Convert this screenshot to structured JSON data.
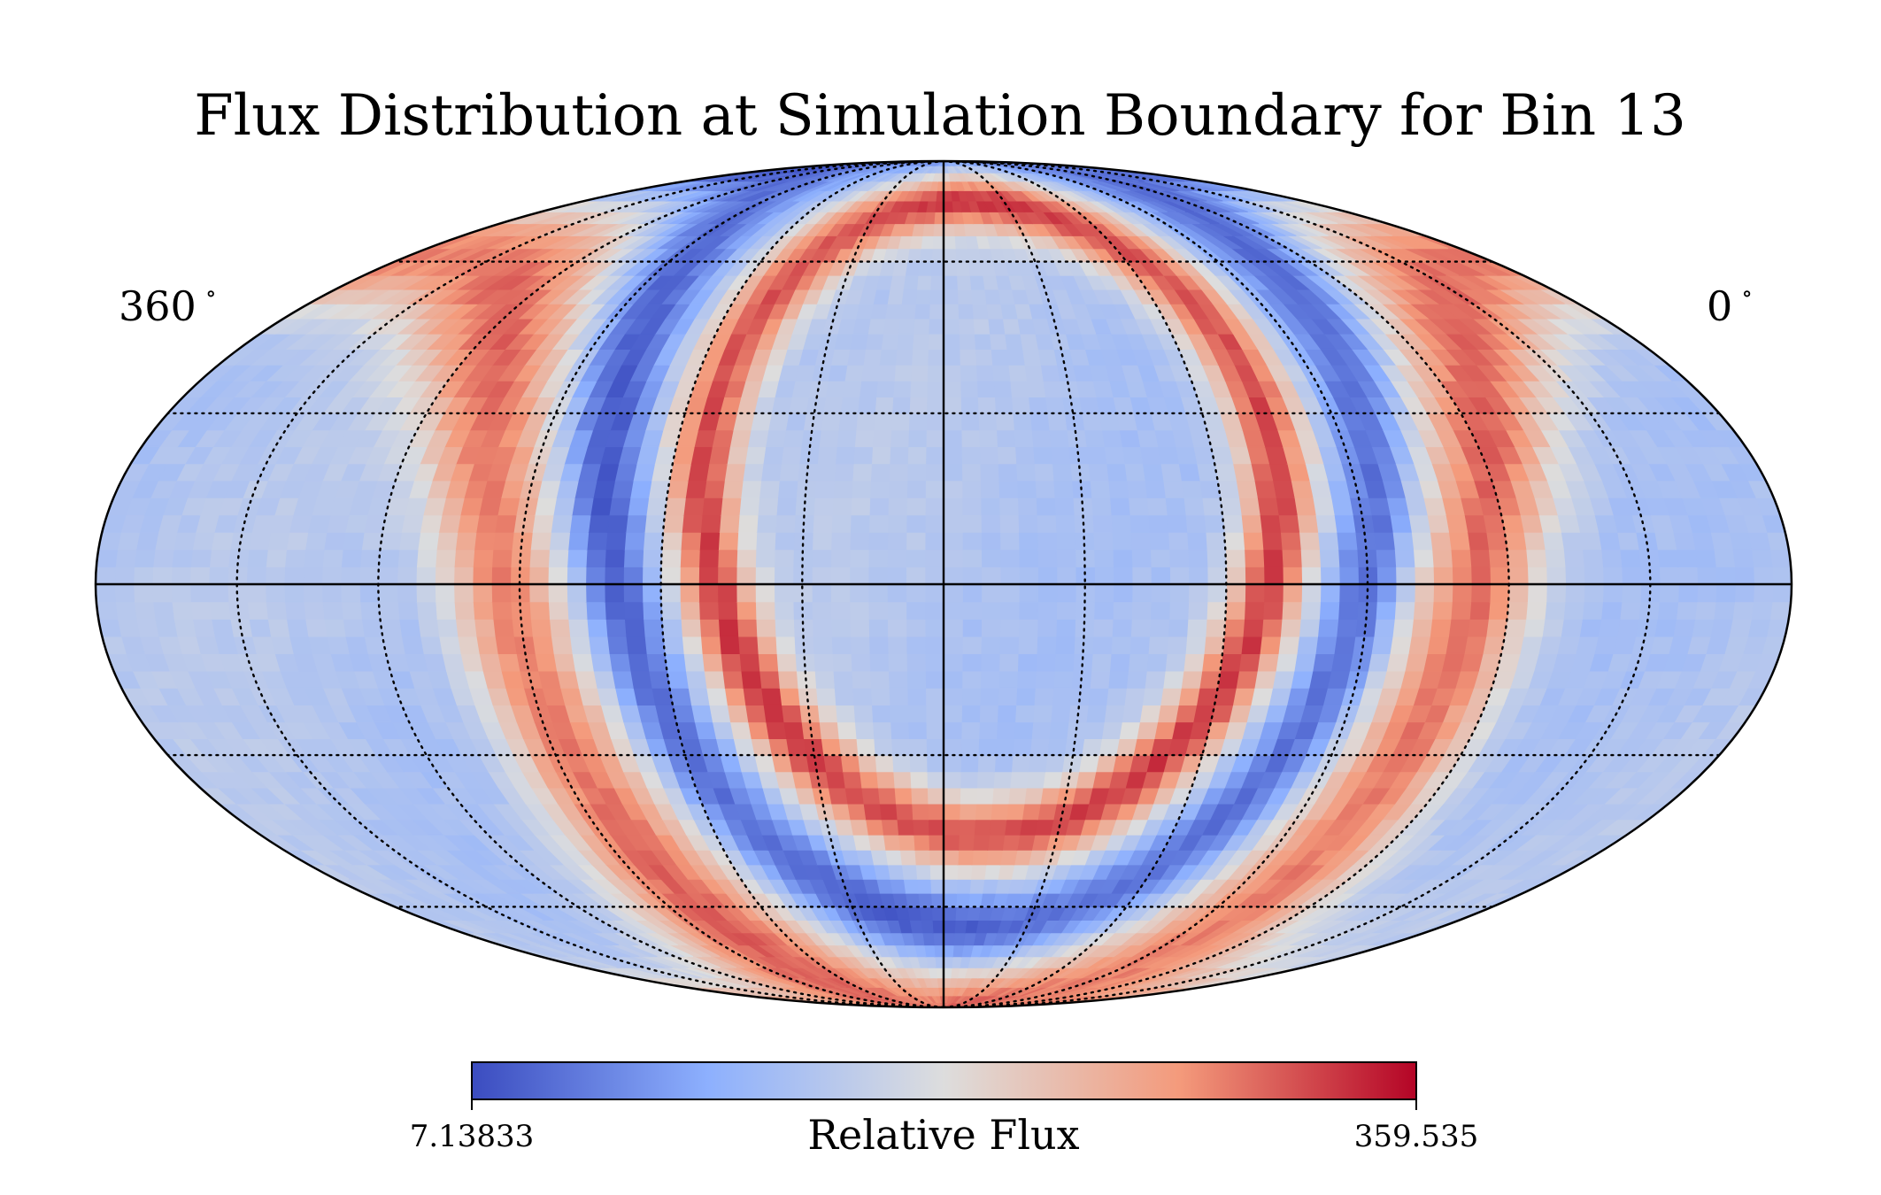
{
  "chart_data": {
    "type": "heatmap",
    "projection": "mollweide",
    "title": "Flux Distribution at Simulation Boundary for Bin 13",
    "longitude_labels": {
      "left": "360",
      "right": "0",
      "unit_symbol": "∘"
    },
    "graticule": {
      "parallels_deg": [
        -60,
        -30,
        30,
        60
      ],
      "meridians_deg": [
        -150,
        -120,
        -90,
        -60,
        -30,
        30,
        60,
        90,
        120,
        150
      ],
      "style": "dotted",
      "axes_lines": "solid"
    },
    "colorbar": {
      "colormap": "coolwarm",
      "min": 7.13833,
      "max": 359.535,
      "min_label": "7.13833",
      "max_label": "359.535",
      "label": "Relative Flux",
      "orientation": "horizontal",
      "placement": "bottom"
    },
    "colors": {
      "low": "#3b4cc0",
      "mid": "#dddddd",
      "high": "#b40426"
    },
    "features": [
      {
        "kind": "ring",
        "centre_lon": -10,
        "centre_lat": 15,
        "radius_deg": 60,
        "width_deg": 10,
        "level": 0.85
      },
      {
        "kind": "ring",
        "centre_lon": -10,
        "centre_lat": 15,
        "radius_deg": 80,
        "width_deg": 10,
        "level": 0.08
      },
      {
        "kind": "ring",
        "centre_lon": -10,
        "centre_lat": 15,
        "radius_deg": 103,
        "width_deg": 16,
        "level": 0.78
      }
    ]
  }
}
